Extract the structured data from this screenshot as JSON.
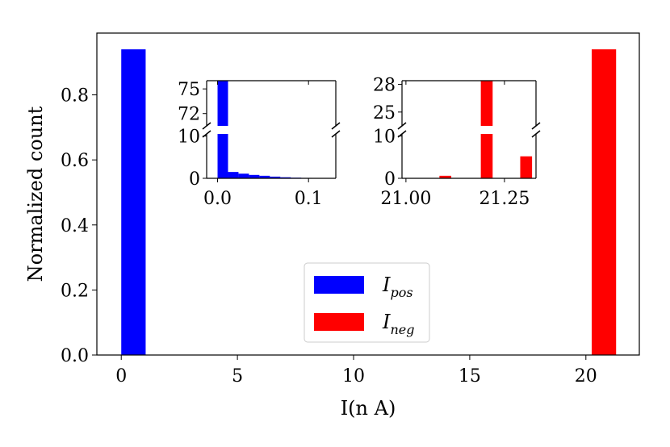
{
  "chart_data": [
    {
      "type": "bar",
      "role": "main",
      "xlabel": "I(n A)",
      "ylabel": "Normalized count",
      "xlim": [
        -1.05,
        22.3
      ],
      "ylim": [
        0,
        0.99
      ],
      "xticks": [
        0,
        5,
        10,
        15,
        20
      ],
      "xtick_labels": [
        "0",
        "5",
        "10",
        "15",
        "20"
      ],
      "yticks": [
        0.0,
        0.2,
        0.4,
        0.6,
        0.8
      ],
      "ytick_labels": [
        "0.0",
        "0.2",
        "0.4",
        "0.6",
        "0.8"
      ],
      "series": [
        {
          "name": "I_pos",
          "color": "#0000ff",
          "bars": [
            {
              "x0": 0.0,
              "x1": 1.05,
              "value": 0.94
            }
          ]
        },
        {
          "name": "I_neg",
          "color": "#ff0000",
          "bars": [
            {
              "x0": 20.25,
              "x1": 21.3,
              "value": 0.94
            }
          ]
        }
      ],
      "grid": false,
      "legend": {
        "placement": "lower-center",
        "entries": [
          {
            "base": "I",
            "sub": "pos",
            "color": "#0000ff"
          },
          {
            "base": "I",
            "sub": "neg",
            "color": "#ff0000"
          }
        ]
      }
    },
    {
      "type": "bar",
      "role": "inset-left",
      "series_color": "#0000ff",
      "xlim": [
        -0.012,
        0.13
      ],
      "xticks": [
        0.0,
        0.1
      ],
      "xtick_labels": [
        "0.0",
        "0.1"
      ],
      "broken_axis": {
        "upper": {
          "ylim": [
            70.5,
            76
          ],
          "yticks": [
            72,
            75
          ],
          "ytick_labels": [
            "72",
            "75"
          ]
        },
        "lower": {
          "ylim": [
            0,
            10.5
          ],
          "yticks": [
            0,
            10
          ],
          "ytick_labels": [
            "0",
            "10"
          ]
        }
      },
      "bars": [
        {
          "x0": 0.0,
          "x1": 0.0115,
          "value": 76
        },
        {
          "x0": 0.0115,
          "x1": 0.023,
          "value": 1.5
        },
        {
          "x0": 0.023,
          "x1": 0.0345,
          "value": 1.1
        },
        {
          "x0": 0.0345,
          "x1": 0.046,
          "value": 0.8
        },
        {
          "x0": 0.046,
          "x1": 0.0575,
          "value": 0.6
        },
        {
          "x0": 0.0575,
          "x1": 0.069,
          "value": 0.4
        },
        {
          "x0": 0.069,
          "x1": 0.0805,
          "value": 0.25
        },
        {
          "x0": 0.0805,
          "x1": 0.092,
          "value": 0.15
        },
        {
          "x0": 0.092,
          "x1": 0.1035,
          "value": 0.1
        }
      ]
    },
    {
      "type": "bar",
      "role": "inset-right",
      "series_color": "#ff0000",
      "xlim": [
        20.99,
        21.33
      ],
      "xticks": [
        21.0,
        21.25
      ],
      "xtick_labels": [
        "21.00",
        "21.25"
      ],
      "broken_axis": {
        "upper": {
          "ylim": [
            23.5,
            28.4
          ],
          "yticks": [
            25,
            28
          ],
          "ytick_labels": [
            "25",
            "28"
          ]
        },
        "lower": {
          "ylim": [
            0,
            10.5
          ],
          "yticks": [
            0,
            10
          ],
          "ytick_labels": [
            "0",
            "10"
          ]
        }
      },
      "bars": [
        {
          "x0": 21.085,
          "x1": 21.115,
          "value": 0.6
        },
        {
          "x0": 21.19,
          "x1": 21.22,
          "value": 28.4
        },
        {
          "x0": 21.29,
          "x1": 21.32,
          "value": 5.2
        }
      ]
    }
  ]
}
